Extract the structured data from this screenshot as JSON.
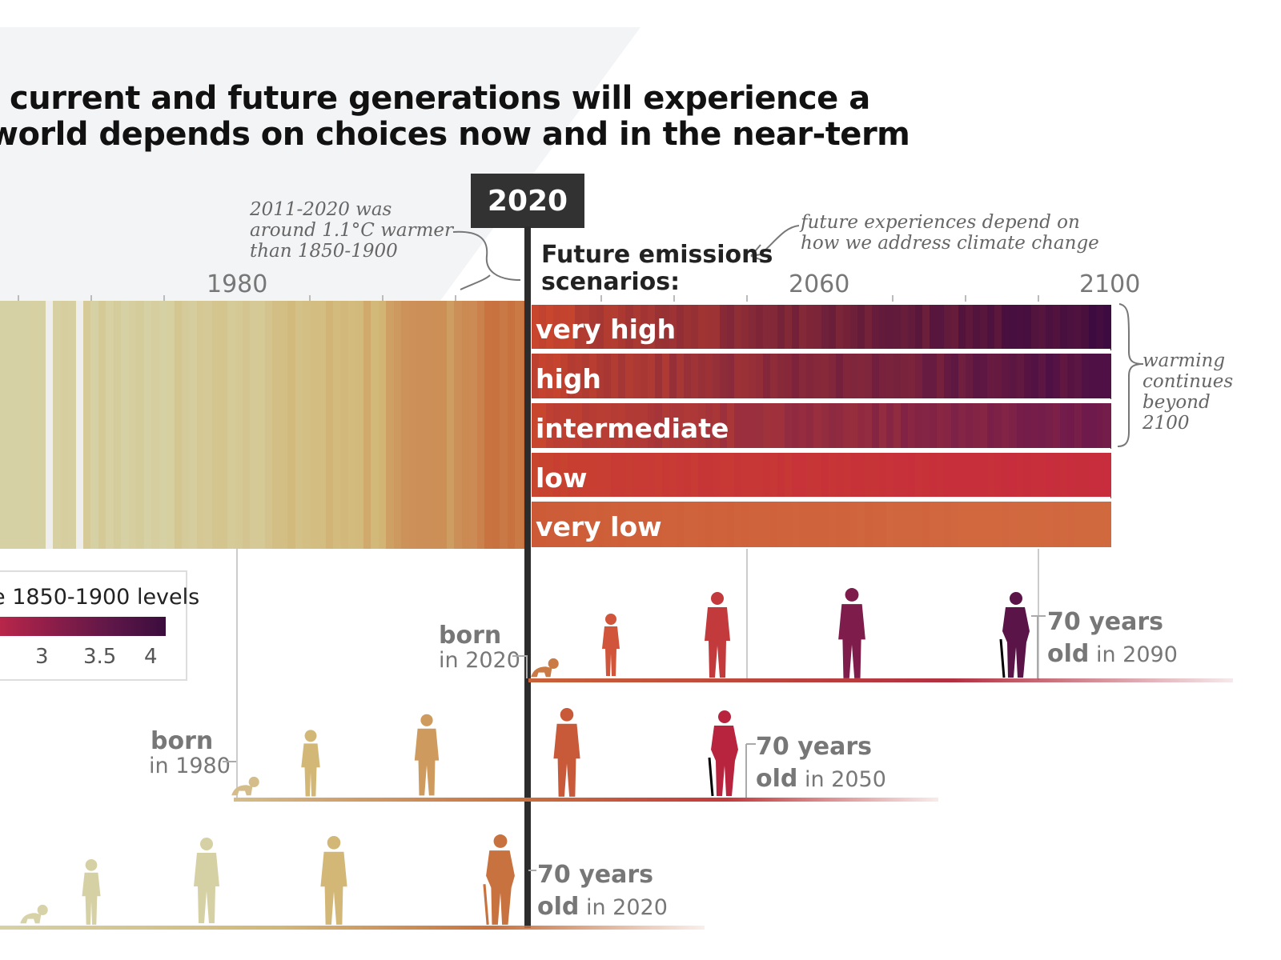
{
  "title": {
    "line1": "current and future generations will experience a",
    "line2": "world depends on choices now and in the near-term"
  },
  "badge_year": "2020",
  "axis_years": [
    "1980",
    "2060",
    "2100"
  ],
  "annotations": {
    "warmer": [
      "2011-2020 was",
      "around 1.1°C warmer",
      "than 1850-1900"
    ],
    "future": [
      "future experiences depend on",
      "how we address climate change"
    ],
    "beyond": [
      "warming",
      "continues",
      "beyond",
      "2100"
    ]
  },
  "scenarios_heading": [
    "Future emissions",
    "scenarios:"
  ],
  "scenarios": [
    {
      "label": "very high",
      "start_color": "#c8452e",
      "end_color": "#3d0b40"
    },
    {
      "label": "high",
      "start_color": "#c8452e",
      "end_color": "#4e1045"
    },
    {
      "label": "intermediate",
      "start_color": "#c8452e",
      "end_color": "#6f1a4c"
    },
    {
      "label": "low",
      "start_color": "#c8452e",
      "end_color": "#c72d3c"
    },
    {
      "label": "very low",
      "start_color": "#cc5a36",
      "end_color": "#d1693f"
    }
  ],
  "legend": {
    "title": "e 1850-1900 levels",
    "ticks": [
      "3",
      "3.5",
      "4"
    ]
  },
  "generations": [
    {
      "born_bold": "born",
      "born_in": "in 2020",
      "age_bold": "70 years",
      "age_old": "old",
      "age_in": " in 2090"
    },
    {
      "born_bold": "born",
      "born_in": "in 1980",
      "age_bold": "70 years",
      "age_old": "old",
      "age_in": " in 2050"
    },
    {
      "age_bold": "70 years",
      "age_old": "old",
      "age_in": " in 2020"
    }
  ],
  "colors": {
    "early": "#d6d1a4",
    "mid": "#d2b777",
    "recent": "#c8723f",
    "badge": "#323232"
  }
}
